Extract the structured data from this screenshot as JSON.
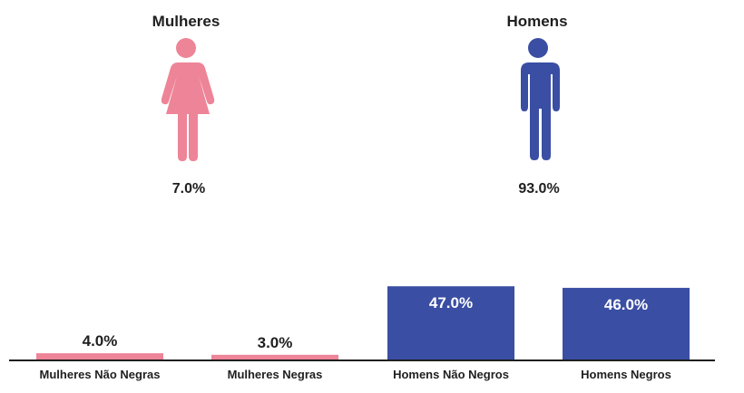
{
  "gender_summary": {
    "women": {
      "label": "Mulheres",
      "percent": "7.0%",
      "icon": "woman-icon",
      "color": "#ee8497"
    },
    "men": {
      "label": "Homens",
      "percent": "93.0%",
      "icon": "man-icon",
      "color": "#3a4ea3"
    }
  },
  "chart_data": {
    "type": "bar",
    "categories": [
      "Mulheres Não Negras",
      "Mulheres Negras",
      "Homens Não Negros",
      "Homens Negros"
    ],
    "values": [
      4.0,
      3.0,
      47.0,
      46.0
    ],
    "value_labels": [
      "4.0%",
      "3.0%",
      "47.0%",
      "46.0%"
    ],
    "colors": [
      "#ee8497",
      "#ee8497",
      "#3a4ea3",
      "#3a4ea3"
    ],
    "unit": "%",
    "ylim": [
      0,
      100
    ],
    "grid": false,
    "legend": "none"
  }
}
